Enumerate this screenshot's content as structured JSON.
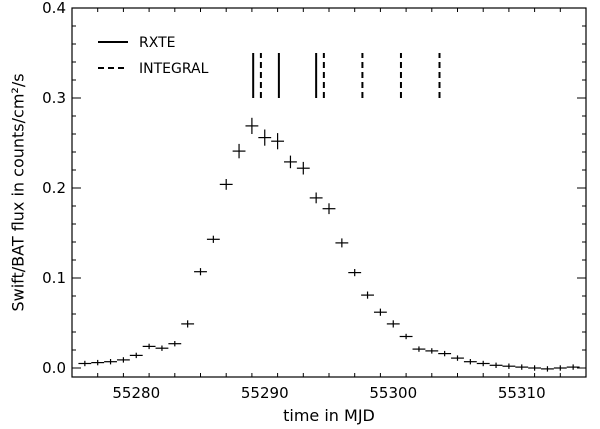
{
  "chart_data": {
    "type": "scatter",
    "title": "",
    "xlabel": "time in MJD",
    "ylabel": "Swift/BAT flux in counts/cm²/s",
    "xlim": [
      55275,
      55315
    ],
    "ylim": [
      -0.01,
      0.4
    ],
    "xticks": [
      55280,
      55290,
      55300,
      55310
    ],
    "yticks": [
      0.0,
      0.1,
      0.2,
      0.3,
      0.4
    ],
    "xtick_labels": [
      "55280",
      "55290",
      "55300",
      "55310"
    ],
    "ytick_labels": [
      "0.0",
      "0.1",
      "0.2",
      "0.3",
      "0.4"
    ],
    "grid": false,
    "legend_position": "top-left",
    "series": [
      {
        "type": "errorbar",
        "points": [
          {
            "x": 55276,
            "y": 0.005,
            "err": 0.003
          },
          {
            "x": 55277,
            "y": 0.006,
            "err": 0.003
          },
          {
            "x": 55278,
            "y": 0.007,
            "err": 0.003
          },
          {
            "x": 55279,
            "y": 0.009,
            "err": 0.003
          },
          {
            "x": 55280,
            "y": 0.014,
            "err": 0.003
          },
          {
            "x": 55281,
            "y": 0.024,
            "err": 0.003
          },
          {
            "x": 55282,
            "y": 0.022,
            "err": 0.003
          },
          {
            "x": 55283,
            "y": 0.027,
            "err": 0.003
          },
          {
            "x": 55284,
            "y": 0.049,
            "err": 0.004
          },
          {
            "x": 55285,
            "y": 0.107,
            "err": 0.004
          },
          {
            "x": 55286,
            "y": 0.143,
            "err": 0.004
          },
          {
            "x": 55287,
            "y": 0.204,
            "err": 0.006
          },
          {
            "x": 55288,
            "y": 0.241,
            "err": 0.008
          },
          {
            "x": 55289,
            "y": 0.269,
            "err": 0.009
          },
          {
            "x": 55290,
            "y": 0.256,
            "err": 0.009
          },
          {
            "x": 55291,
            "y": 0.252,
            "err": 0.009
          },
          {
            "x": 55292,
            "y": 0.229,
            "err": 0.007
          },
          {
            "x": 55293,
            "y": 0.222,
            "err": 0.007
          },
          {
            "x": 55294,
            "y": 0.189,
            "err": 0.006
          },
          {
            "x": 55295,
            "y": 0.177,
            "err": 0.006
          },
          {
            "x": 55296,
            "y": 0.139,
            "err": 0.005
          },
          {
            "x": 55297,
            "y": 0.106,
            "err": 0.004
          },
          {
            "x": 55298,
            "y": 0.081,
            "err": 0.004
          },
          {
            "x": 55299,
            "y": 0.062,
            "err": 0.004
          },
          {
            "x": 55300,
            "y": 0.049,
            "err": 0.004
          },
          {
            "x": 55301,
            "y": 0.035,
            "err": 0.003
          },
          {
            "x": 55302,
            "y": 0.021,
            "err": 0.003
          },
          {
            "x": 55303,
            "y": 0.019,
            "err": 0.003
          },
          {
            "x": 55304,
            "y": 0.016,
            "err": 0.003
          },
          {
            "x": 55305,
            "y": 0.011,
            "err": 0.003
          },
          {
            "x": 55306,
            "y": 0.007,
            "err": 0.003
          },
          {
            "x": 55307,
            "y": 0.005,
            "err": 0.003
          },
          {
            "x": 55308,
            "y": 0.003,
            "err": 0.003
          },
          {
            "x": 55309,
            "y": 0.002,
            "err": 0.003
          },
          {
            "x": 55310,
            "y": 0.001,
            "err": 0.003
          },
          {
            "x": 55311,
            "y": 0.0,
            "err": 0.003
          },
          {
            "x": 55312,
            "y": -0.001,
            "err": 0.003
          },
          {
            "x": 55313,
            "y": 0.0,
            "err": 0.003
          },
          {
            "x": 55314,
            "y": 0.001,
            "err": 0.003
          }
        ]
      }
    ],
    "observation_markers": {
      "y_range": [
        0.3,
        0.35
      ],
      "legend": [
        {
          "name": "RXTE",
          "style": "solid"
        },
        {
          "name": "INTEGRAL",
          "style": "dashed"
        }
      ],
      "rxte": [
        55289.1,
        55291.1,
        55294.0
      ],
      "integral": [
        55289.7,
        55294.6,
        55297.6,
        55300.6,
        55303.6
      ]
    }
  }
}
